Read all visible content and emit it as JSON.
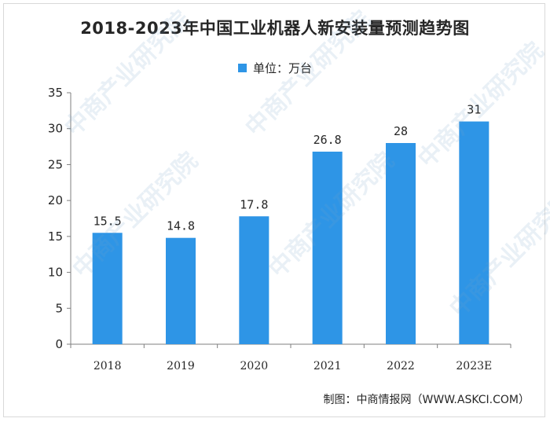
{
  "colors": {
    "bar": "#2e95e6",
    "axis": "#7f7f7f",
    "text": "#262626"
  },
  "watermark": "中商产业研究院",
  "source": "制图：中商情报网（WWW.ASKCI.COM）",
  "chart_data": {
    "type": "bar",
    "title": "2018-2023年中国工业机器人新安装量预测趋势图",
    "legend": [
      "单位：万台"
    ],
    "legend_position": "top-center",
    "categories": [
      "2018",
      "2019",
      "2020",
      "2021",
      "2022",
      "2023E"
    ],
    "series": [
      {
        "name": "单位：万台",
        "values": [
          15.5,
          14.8,
          17.8,
          26.8,
          28,
          31
        ],
        "labels": [
          "15.5",
          "14.8",
          "17.8",
          "26.8",
          "28",
          "31"
        ]
      }
    ],
    "ylim": [
      0,
      35
    ],
    "yticks": [
      0,
      5,
      10,
      15,
      20,
      25,
      30,
      35
    ],
    "grid": false
  }
}
